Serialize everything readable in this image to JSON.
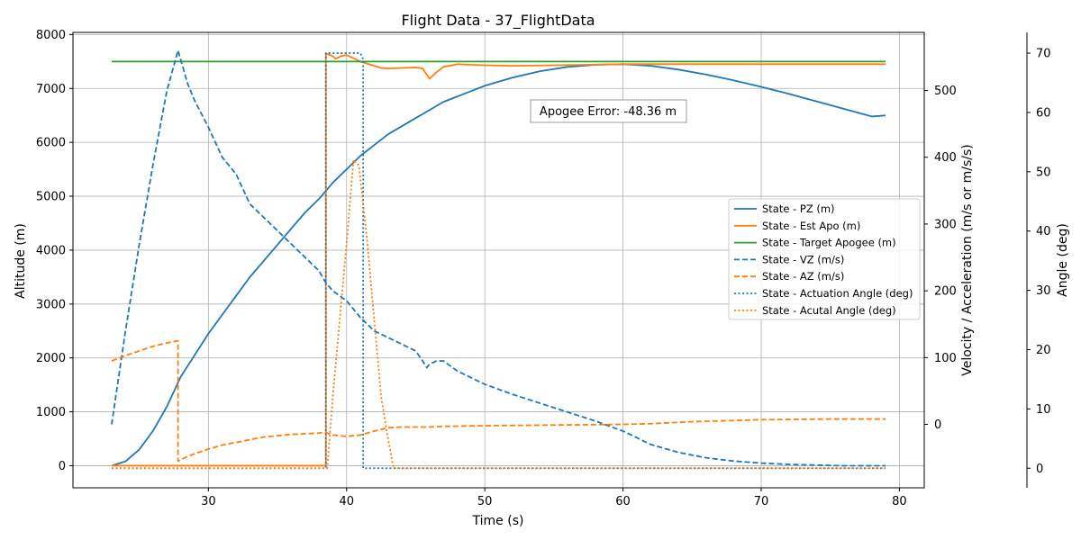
{
  "chart_data": {
    "type": "line",
    "title": "Flight Data - 37_FlightData",
    "xlabel": "Time (s)",
    "ylabel_left": "Altitude (m)",
    "ylabel_right1": "Velocity / Acceleration (m/s or m/s/s)",
    "ylabel_right2": "Angle (deg)",
    "xlim": [
      20.2,
      81.8
    ],
    "ylim_left": [
      -410,
      8040
    ],
    "ylim_right1": [
      -95,
      587
    ],
    "ylim_right2": [
      -3.3,
      73.5
    ],
    "xticks": [
      30,
      40,
      50,
      60,
      70,
      80
    ],
    "yticks_left": [
      0,
      1000,
      2000,
      3000,
      4000,
      5000,
      6000,
      7000,
      8000
    ],
    "yticks_right1": [
      0,
      100,
      200,
      300,
      400,
      500
    ],
    "yticks_right2": [
      0,
      10,
      20,
      30,
      40,
      50,
      60,
      70
    ],
    "grid": true,
    "legend_position": "center-right",
    "annotation": "Apogee Error: -48.36 m",
    "series": [
      {
        "name": "State - PZ (m)",
        "axis": "left",
        "color": "#1f77b4",
        "style": "solid",
        "x": [
          23,
          24,
          25,
          26,
          27,
          28,
          29,
          30,
          31,
          32,
          33,
          34,
          35,
          36,
          37,
          38,
          39,
          40,
          41,
          42,
          43,
          44,
          45,
          46,
          47,
          48,
          50,
          52,
          54,
          56,
          58,
          60,
          62,
          64,
          66,
          68,
          70,
          72,
          74,
          76,
          78,
          79
        ],
        "y": [
          0,
          80,
          300,
          650,
          1100,
          1650,
          2050,
          2450,
          2800,
          3150,
          3500,
          3800,
          4100,
          4400,
          4700,
          4950,
          5250,
          5500,
          5750,
          5950,
          6150,
          6300,
          6450,
          6600,
          6750,
          6850,
          7050,
          7200,
          7320,
          7400,
          7440,
          7450,
          7420,
          7350,
          7260,
          7150,
          7030,
          6900,
          6760,
          6620,
          6480,
          6500
        ]
      },
      {
        "name": "State - Est Apo (m)",
        "axis": "left",
        "color": "#ff7f0e",
        "style": "solid",
        "x": [
          23,
          38.5,
          38.5,
          39,
          39.2,
          39.6,
          40,
          40.5,
          41,
          42,
          42.5,
          43,
          44,
          45,
          45.5,
          46,
          46.5,
          47,
          48,
          50,
          52,
          55,
          60,
          65,
          70,
          75,
          79
        ],
        "y": [
          0,
          0,
          7650,
          7600,
          7550,
          7600,
          7620,
          7560,
          7500,
          7420,
          7380,
          7370,
          7380,
          7390,
          7370,
          7180,
          7300,
          7400,
          7450,
          7430,
          7420,
          7430,
          7450,
          7450,
          7450,
          7450,
          7450
        ]
      },
      {
        "name": "State - Target Apogee (m)",
        "axis": "left",
        "color": "#2ca02c",
        "style": "solid",
        "x": [
          23,
          79
        ],
        "y": [
          7500,
          7500
        ]
      },
      {
        "name": "State - VZ (m/s)",
        "axis": "right1",
        "color": "#1f77b4",
        "style": "dashed",
        "x": [
          23,
          24,
          25,
          26,
          27,
          27.8,
          28.5,
          29,
          29.5,
          30,
          31,
          32,
          33,
          34,
          35,
          36,
          37,
          38,
          38.5,
          39,
          40,
          41,
          42,
          43,
          44,
          45,
          45.5,
          45.8,
          46,
          46.5,
          47,
          48,
          49,
          50,
          52,
          55,
          58,
          60,
          62,
          64,
          66,
          68,
          70,
          72,
          74,
          76,
          78,
          79
        ],
        "y": [
          0,
          140,
          270,
          390,
          500,
          560,
          510,
          485,
          465,
          445,
          400,
          375,
          330,
          310,
          290,
          270,
          250,
          230,
          212,
          200,
          185,
          160,
          140,
          130,
          120,
          110,
          95,
          85,
          90,
          95,
          95,
          80,
          70,
          60,
          45,
          25,
          5,
          -10,
          -30,
          -42,
          -50,
          -55,
          -58,
          -60,
          -61,
          -62,
          -62,
          -62
        ]
      },
      {
        "name": "State - AZ (m/s)",
        "axis": "right1",
        "color": "#ff7f0e",
        "style": "dashed",
        "x": [
          23,
          24,
          25,
          26,
          27,
          27.8,
          27.8,
          28.5,
          29,
          30,
          31,
          32,
          33,
          34,
          36,
          38,
          38.4,
          38.6,
          39,
          40,
          41,
          42,
          43,
          44,
          45,
          46,
          47,
          50,
          55,
          60,
          62,
          65,
          70,
          75,
          79
        ],
        "y": [
          95,
          103,
          110,
          117,
          122,
          125,
          -55,
          -48,
          -44,
          -37,
          -31,
          -27,
          -23,
          -19,
          -15,
          -13,
          -12,
          -13,
          -16,
          -18,
          -16,
          -10,
          -5,
          -4,
          -4,
          -4,
          -3,
          -2,
          -1,
          0,
          1,
          4,
          7,
          8,
          8
        ]
      },
      {
        "name": "State - Actuation Angle (deg)",
        "axis": "right2",
        "color": "#1f77b4",
        "style": "dotted",
        "x": [
          23,
          38.5,
          38.5,
          41,
          41.2,
          41.2,
          79
        ],
        "y": [
          0,
          0,
          70,
          70,
          69,
          0,
          0
        ]
      },
      {
        "name": "State - Acutal Angle (deg)",
        "axis": "right2",
        "color": "#ff7f0e",
        "style": "dotted",
        "x": [
          23,
          38.6,
          39,
          40,
          40.5,
          40.9,
          41.5,
          42,
          42.5,
          43,
          43.4,
          79
        ],
        "y": [
          0,
          0,
          12,
          38,
          52,
          51,
          38,
          25,
          12,
          5,
          0,
          0
        ]
      }
    ]
  }
}
